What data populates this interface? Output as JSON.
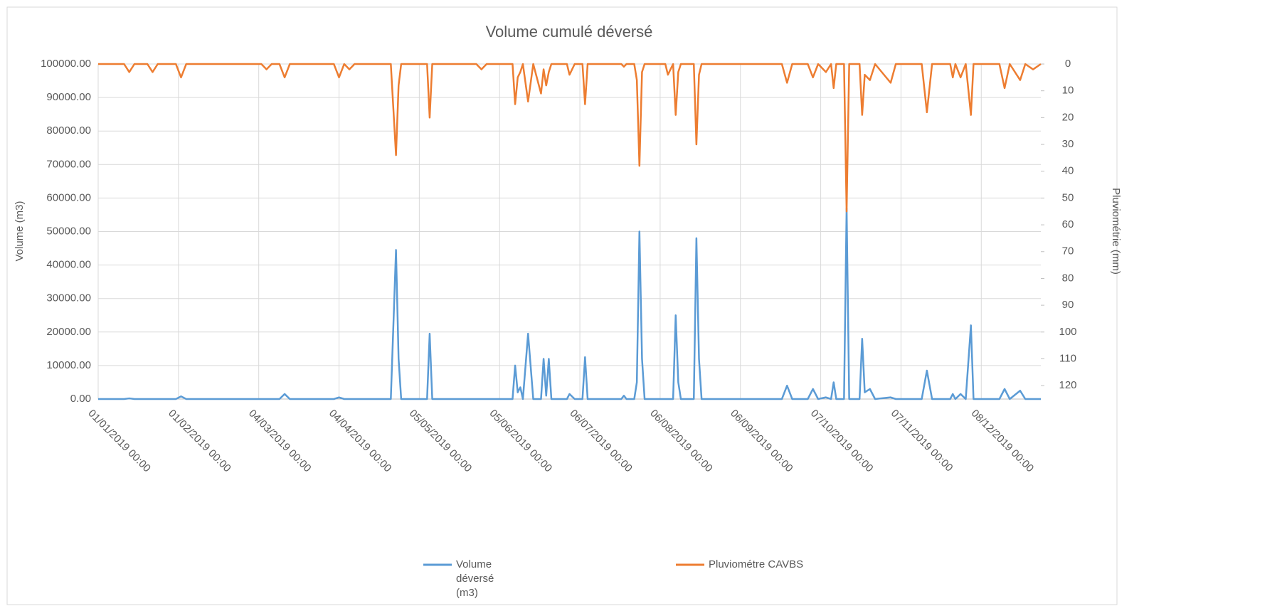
{
  "chart_data": {
    "type": "line",
    "title": "Volume cumulé déversé",
    "y_label": "Volume (m3)",
    "y2_label": "Pluviométrie (mm)",
    "x": [
      0,
      10,
      12,
      14,
      19,
      21,
      23,
      30,
      32,
      34,
      63,
      65,
      67,
      70,
      72,
      74,
      91,
      93,
      95,
      97,
      99,
      113,
      115,
      116,
      117,
      127,
      128,
      129,
      146,
      148,
      150,
      160,
      161,
      162,
      163,
      164,
      166,
      168,
      171,
      172,
      173,
      174,
      175,
      181,
      182,
      184,
      187,
      188,
      189,
      202,
      203,
      204,
      207,
      208,
      209,
      210,
      211,
      219,
      220,
      222,
      223,
      224,
      225,
      230,
      231,
      232,
      233,
      264,
      266,
      268,
      274,
      276,
      278,
      281,
      283,
      284,
      285,
      288,
      289,
      290,
      294,
      295,
      296,
      298,
      300,
      306,
      308,
      318,
      320,
      322,
      329,
      330,
      331,
      333,
      335,
      337,
      338,
      348,
      350,
      352,
      356,
      358,
      361,
      364
    ],
    "xlim": [
      0,
      364
    ],
    "xticks": [
      {
        "value": 0,
        "label": "01/01/2019 00:00"
      },
      {
        "value": 31,
        "label": "01/02/2019 00:00"
      },
      {
        "value": 62,
        "label": "04/03/2019 00:00"
      },
      {
        "value": 93,
        "label": "04/04/2019 00:00"
      },
      {
        "value": 124,
        "label": "05/05/2019 00:00"
      },
      {
        "value": 155,
        "label": "05/06/2019 00:00"
      },
      {
        "value": 186,
        "label": "06/07/2019 00:00"
      },
      {
        "value": 217,
        "label": "06/08/2019 00:00"
      },
      {
        "value": 248,
        "label": "06/09/2019 00:00"
      },
      {
        "value": 279,
        "label": "07/10/2019 00:00"
      },
      {
        "value": 310,
        "label": "07/11/2019 00:00"
      },
      {
        "value": 341,
        "label": "08/12/2019 00:00"
      }
    ],
    "ylim": [
      0,
      100000
    ],
    "yticks": [
      {
        "value": 0,
        "label": "0.00"
      },
      {
        "value": 10000,
        "label": "10000.00"
      },
      {
        "value": 20000,
        "label": "20000.00"
      },
      {
        "value": 30000,
        "label": "30000.00"
      },
      {
        "value": 40000,
        "label": "40000.00"
      },
      {
        "value": 50000,
        "label": "50000.00"
      },
      {
        "value": 60000,
        "label": "60000.00"
      },
      {
        "value": 70000,
        "label": "70000.00"
      },
      {
        "value": 80000,
        "label": "80000.00"
      },
      {
        "value": 90000,
        "label": "90000.00"
      },
      {
        "value": 100000,
        "label": "100000.00"
      }
    ],
    "y2lim": [
      125,
      0
    ],
    "y2ticks": [
      0,
      10,
      20,
      30,
      40,
      50,
      60,
      70,
      80,
      90,
      100,
      110,
      120
    ],
    "grid": true,
    "legend": "bottom",
    "series": [
      {
        "name": "Volume déversé (m3)",
        "color": "#5b9bd5",
        "values": [
          0,
          0,
          200,
          0,
          0,
          0,
          0,
          0,
          800,
          0,
          0,
          0,
          0,
          0,
          1500,
          0,
          0,
          500,
          0,
          0,
          0,
          0,
          44500,
          12000,
          0,
          0,
          19500,
          0,
          0,
          0,
          0,
          0,
          10000,
          2000,
          3500,
          0,
          19500,
          0,
          0,
          12000,
          1000,
          12000,
          0,
          0,
          1500,
          0,
          0,
          12500,
          0,
          0,
          1000,
          0,
          0,
          5000,
          50000,
          12000,
          0,
          0,
          0,
          0,
          25000,
          5000,
          0,
          0,
          48000,
          12000,
          0,
          0,
          4000,
          0,
          0,
          3000,
          0,
          500,
          0,
          5000,
          0,
          0,
          57000,
          0,
          0,
          18000,
          2000,
          3000,
          0,
          500,
          0,
          0,
          8500,
          0,
          0,
          1500,
          0,
          1500,
          0,
          22000,
          0,
          0,
          3000,
          0,
          2500,
          0,
          0,
          0
        ]
      },
      {
        "name": "Pluviométre CAVBS",
        "color": "#ed7d31",
        "axis": "y2",
        "values": [
          0,
          0,
          3,
          0,
          0,
          3,
          0,
          0,
          5,
          0,
          0,
          2,
          0,
          0,
          5,
          0,
          0,
          5,
          0,
          2,
          0,
          0,
          34,
          8,
          0,
          0,
          20,
          0,
          0,
          2,
          0,
          0,
          15,
          5,
          3,
          0,
          14,
          0,
          11,
          2,
          8,
          3,
          0,
          0,
          4,
          0,
          0,
          15,
          0,
          0,
          1,
          0,
          0,
          6,
          38,
          3,
          0,
          0,
          4,
          0,
          19,
          3,
          0,
          0,
          30,
          4,
          0,
          0,
          7,
          0,
          0,
          5,
          0,
          3,
          0,
          9,
          0,
          0,
          55,
          0,
          0,
          19,
          4,
          6,
          0,
          7,
          0,
          0,
          18,
          0,
          0,
          5,
          0,
          5,
          0,
          19,
          0,
          0,
          9,
          0,
          6,
          0,
          2,
          0
        ]
      }
    ]
  }
}
